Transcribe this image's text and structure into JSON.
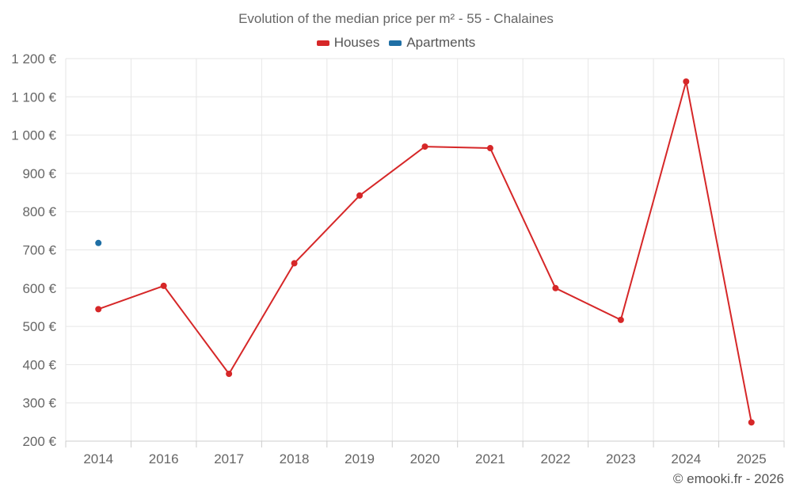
{
  "chart_data": {
    "type": "line",
    "title": "Evolution of the median price per m² - 55 - Chalaines",
    "xlabel": "",
    "ylabel": "",
    "categories": [
      "2014",
      "2016",
      "2017",
      "2018",
      "2019",
      "2020",
      "2021",
      "2022",
      "2023",
      "2024",
      "2025"
    ],
    "series": [
      {
        "name": "Houses",
        "color": "#d62728",
        "values": [
          545,
          606,
          376,
          665,
          842,
          970,
          966,
          600,
          517,
          1140,
          249
        ]
      },
      {
        "name": "Apartments",
        "color": "#1f6fa5",
        "values": [
          718,
          null,
          null,
          null,
          null,
          null,
          null,
          null,
          null,
          null,
          null
        ]
      }
    ],
    "ylim": [
      200,
      1200
    ],
    "yticks": [
      200,
      300,
      400,
      500,
      600,
      700,
      800,
      900,
      1000,
      1100,
      1200
    ],
    "ytick_labels": [
      "200 €",
      "300 €",
      "400 €",
      "500 €",
      "600 €",
      "700 €",
      "800 €",
      "900 €",
      "1 000 €",
      "1 100 €",
      "1 200 €"
    ],
    "grid": true,
    "legend_position": "top-center"
  },
  "footer": {
    "credit": "© emooki.fr - 2026"
  }
}
